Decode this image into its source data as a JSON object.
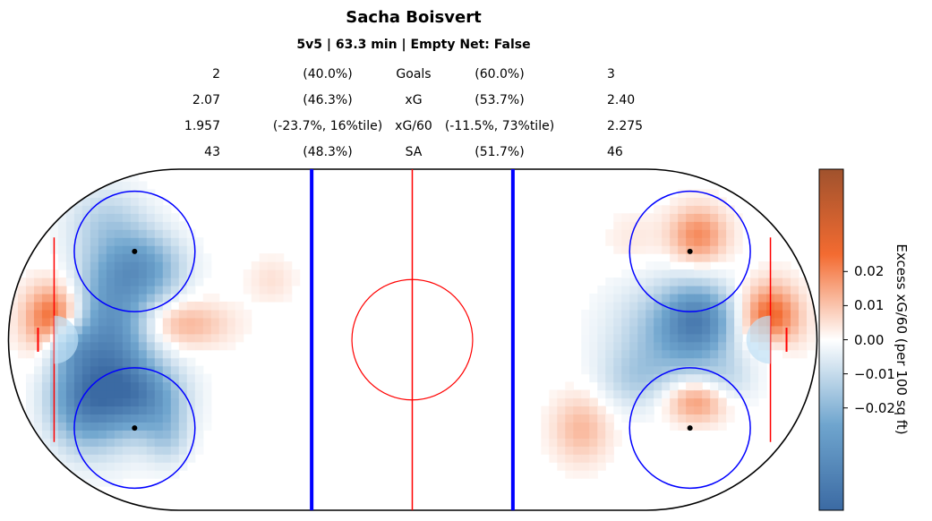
{
  "title": "Sacha Boisvert",
  "subtitle": "5v5 | 63.3 min | Empty Net: False",
  "stats": [
    {
      "left": "2",
      "left_pct": "(40.0%)",
      "label": "Goals",
      "right_pct": "(60.0%)",
      "right": "3"
    },
    {
      "left": "2.07",
      "left_pct": "(46.3%)",
      "label": "xG",
      "right_pct": "(53.7%)",
      "right": "2.40"
    },
    {
      "left": "1.957",
      "left_pct": "(-23.7%, 16%tile)",
      "label": "xG/60",
      "right_pct": "(-11.5%, 73%tile)",
      "right": "2.275"
    },
    {
      "left": "43",
      "left_pct": "(48.3%)",
      "label": "SA",
      "right_pct": "(51.7%)",
      "right": "46"
    }
  ],
  "colors": {
    "neg": "#3b6aa3",
    "pos": "#f36b31",
    "mid": "#ffffff",
    "blue_line": "#0000ff",
    "red_line": "#ff0000"
  },
  "chart_data": {
    "type": "heatmap",
    "colorbar": {
      "label": "Excess xG/60 (per 100 sq ft)",
      "ticks": [
        0.02,
        0.01,
        0.0,
        -0.01,
        -0.02
      ],
      "tick_labels": [
        "0.02",
        "0.01",
        "0.00",
        "−0.01",
        "−0.02"
      ],
      "range": [
        -0.05,
        0.05
      ],
      "cmap": [
        "#3b6aa3",
        "#ffffff",
        "#f36b31",
        "#a0522d"
      ]
    },
    "blobs": [
      {
        "zone": "left",
        "x": -89,
        "y": 5,
        "sx": 5,
        "sy": 6,
        "v": 0.03
      },
      {
        "zone": "left",
        "x": -86,
        "y": -1,
        "sx": 4,
        "sy": 4,
        "v": -0.02
      },
      {
        "zone": "left",
        "x": -75,
        "y": 0,
        "sx": 7,
        "sy": 14,
        "v": -0.035
      },
      {
        "zone": "left",
        "x": -67,
        "y": 18,
        "sx": 7,
        "sy": 6,
        "v": -0.025
      },
      {
        "zone": "left",
        "x": -67,
        "y": -14,
        "sx": 7,
        "sy": 6,
        "v": -0.03
      },
      {
        "zone": "left",
        "x": -82,
        "y": -15,
        "sx": 6,
        "sy": 8,
        "v": -0.03
      },
      {
        "zone": "left",
        "x": -61,
        "y": -24,
        "sx": 4,
        "sy": 5,
        "v": -0.012
      },
      {
        "zone": "left",
        "x": -57,
        "y": 4,
        "sx": 8,
        "sy": 4,
        "v": 0.013
      },
      {
        "zone": "left",
        "x": -76,
        "y": 30,
        "sx": 7,
        "sy": 6,
        "v": -0.01
      },
      {
        "zone": "left",
        "x": -35,
        "y": 15,
        "sx": 4,
        "sy": 4,
        "v": 0.005
      },
      {
        "zone": "right",
        "x": 89,
        "y": 5,
        "sx": 5,
        "sy": 6,
        "v": 0.03
      },
      {
        "zone": "right",
        "x": 89,
        "y": -1,
        "sx": 4,
        "sy": 4,
        "v": -0.012
      },
      {
        "zone": "right",
        "x": 71,
        "y": 5,
        "sx": 6,
        "sy": 6,
        "v": -0.03
      },
      {
        "zone": "right",
        "x": 64,
        "y": 0,
        "sx": 10,
        "sy": 10,
        "v": -0.018
      },
      {
        "zone": "right",
        "x": 71,
        "y": 26,
        "sx": 5,
        "sy": 5,
        "v": 0.02
      },
      {
        "zone": "right",
        "x": 71,
        "y": -15,
        "sx": 6,
        "sy": 4,
        "v": 0.022
      },
      {
        "zone": "right",
        "x": 78,
        "y": -11,
        "sx": 5,
        "sy": 5,
        "v": -0.01
      },
      {
        "zone": "right",
        "x": 42,
        "y": -22,
        "sx": 5,
        "sy": 6,
        "v": 0.012
      },
      {
        "zone": "right",
        "x": 55,
        "y": 25,
        "sx": 5,
        "sy": 5,
        "v": 0.004
      },
      {
        "zone": "right",
        "x": 55,
        "y": -10,
        "sx": 6,
        "sy": 5,
        "v": -0.008
      }
    ]
  }
}
